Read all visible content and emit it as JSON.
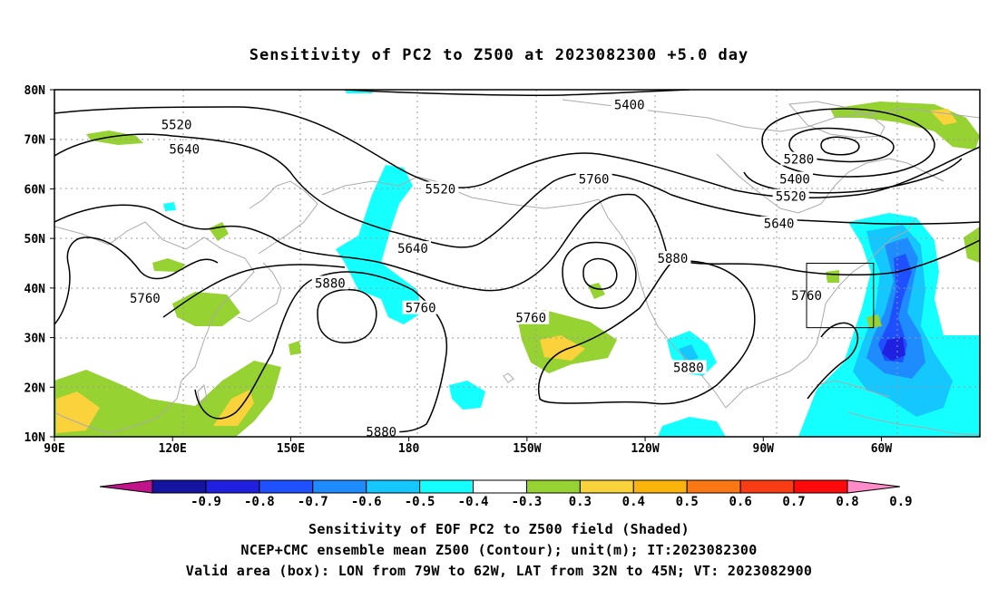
{
  "title": "Sensitivity of PC2 to Z500 at 2023082300 +5.0 day",
  "lat_labels": [
    "80N",
    "70N",
    "60N",
    "50N",
    "40N",
    "30N",
    "20N",
    "10N"
  ],
  "lon_labels": [
    "90E",
    "120E",
    "150E",
    "180",
    "150W",
    "120W",
    "90W",
    "60W"
  ],
  "contour_labels": [
    {
      "text": "5400",
      "lon": 236,
      "lat": 77
    },
    {
      "text": "5520",
      "lon": 121,
      "lat": 73
    },
    {
      "text": "5640",
      "lon": 123,
      "lat": 68
    },
    {
      "text": "5520",
      "lon": 188,
      "lat": 60
    },
    {
      "text": "5760",
      "lon": 227,
      "lat": 62
    },
    {
      "text": "5280",
      "lon": 279,
      "lat": 66
    },
    {
      "text": "5400",
      "lon": 278,
      "lat": 62
    },
    {
      "text": "5520",
      "lon": 277,
      "lat": 58.5
    },
    {
      "text": "5640",
      "lon": 274,
      "lat": 53
    },
    {
      "text": "5640",
      "lon": 181,
      "lat": 48
    },
    {
      "text": "5880",
      "lon": 160,
      "lat": 41
    },
    {
      "text": "5880",
      "lon": 247,
      "lat": 46
    },
    {
      "text": "5760",
      "lon": 113,
      "lat": 38
    },
    {
      "text": "5760",
      "lon": 183,
      "lat": 36
    },
    {
      "text": "5760",
      "lon": 211,
      "lat": 34
    },
    {
      "text": "5760",
      "lon": 281,
      "lat": 38.5
    },
    {
      "text": "5880",
      "lon": 251,
      "lat": 24
    },
    {
      "text": "5880",
      "lon": 173,
      "lat": 11
    }
  ],
  "valid_box": {
    "lon_west": -79,
    "lon_east": -62,
    "lat_south": 32,
    "lat_north": 45
  },
  "colorbar": {
    "labels": [
      "-0.9",
      "-0.8",
      "-0.7",
      "-0.6",
      "-0.5",
      "-0.4",
      "-0.3",
      "0.3",
      "0.4",
      "0.5",
      "0.6",
      "0.7",
      "0.8",
      "0.9"
    ],
    "colors": [
      "#c0158a",
      "#1414a0",
      "#2020e0",
      "#1e50ff",
      "#1e8cff",
      "#14c8ff",
      "#14ffff",
      "#ffffff",
      "#96d232",
      "#fad23c",
      "#fab40a",
      "#fa7814",
      "#fa3c14",
      "#ff0a0a",
      "#ff8cc8"
    ]
  },
  "captions": [
    "Sensitivity of EOF PC2 to Z500 field (Shaded)",
    "NCEP+CMC ensemble mean Z500 (Contour); unit(m); IT:2023082300",
    "Valid area (box): LON from 79W to 62W, LAT from 32N to 45N; VT: 2023082900"
  ]
}
